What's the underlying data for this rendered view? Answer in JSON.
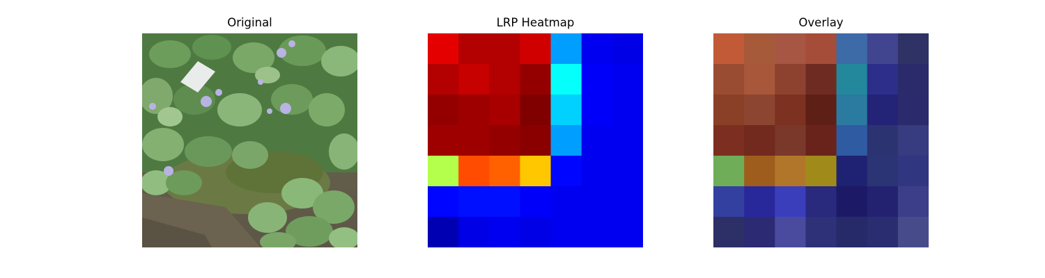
{
  "figure": {
    "titles": [
      "Original",
      "LRP Heatmap",
      "Overlay"
    ]
  },
  "chart_data": [
    {
      "type": "image",
      "title": "Original",
      "content": "photo of green leafy plants with small lilac flowers over soil and moss"
    },
    {
      "type": "heatmap",
      "title": "LRP Heatmap",
      "colormap": "jet",
      "rows": 7,
      "cols": 7,
      "z": [
        [
          0.9,
          0.95,
          0.95,
          0.92,
          0.28,
          0.11,
          0.1
        ],
        [
          0.95,
          0.93,
          0.95,
          0.98,
          0.38,
          0.12,
          0.11
        ],
        [
          0.98,
          0.97,
          0.96,
          1.0,
          0.33,
          0.12,
          0.11
        ],
        [
          0.97,
          0.97,
          0.98,
          0.99,
          0.28,
          0.11,
          0.11
        ],
        [
          0.55,
          0.8,
          0.78,
          0.68,
          0.13,
          0.11,
          0.11
        ],
        [
          0.13,
          0.14,
          0.14,
          0.12,
          0.11,
          0.11,
          0.11
        ],
        [
          0.05,
          0.1,
          0.11,
          0.1,
          0.11,
          0.11,
          0.11
        ]
      ]
    },
    {
      "type": "heatmap",
      "title": "Overlay",
      "blend": "heatmap overlaid on original image",
      "rows": 7,
      "cols": 7,
      "colors": [
        [
          "#c25a38",
          "#a65a3a",
          "#a75644",
          "#a64d3a",
          "#3d6ba8",
          "#414590",
          "#2e3265"
        ],
        [
          "#9a4c33",
          "#a9573b",
          "#8c422f",
          "#6e2b22",
          "#23889c",
          "#2c2e8a",
          "#2b2a6b"
        ],
        [
          "#8a3f27",
          "#8c4530",
          "#7d3121",
          "#5e1f17",
          "#2b7aa0",
          "#232477",
          "#2a2a6c"
        ],
        [
          "#7c2f20",
          "#722a1e",
          "#7a382a",
          "#6a231a",
          "#2f5ba3",
          "#2b3371",
          "#363c7f"
        ],
        [
          "#6fad58",
          "#9e5d1d",
          "#b2762b",
          "#a08b1a",
          "#1f2272",
          "#2b3474",
          "#303780"
        ],
        [
          "#3340a0",
          "#29289a",
          "#3b3ebb",
          "#29297d",
          "#1c1a66",
          "#232270",
          "#3c3e8a"
        ],
        [
          "#2c3066",
          "#2b2a73",
          "#4a4b9e",
          "#2e3078",
          "#272a68",
          "#2a2d70",
          "#484b8a"
        ]
      ]
    }
  ]
}
